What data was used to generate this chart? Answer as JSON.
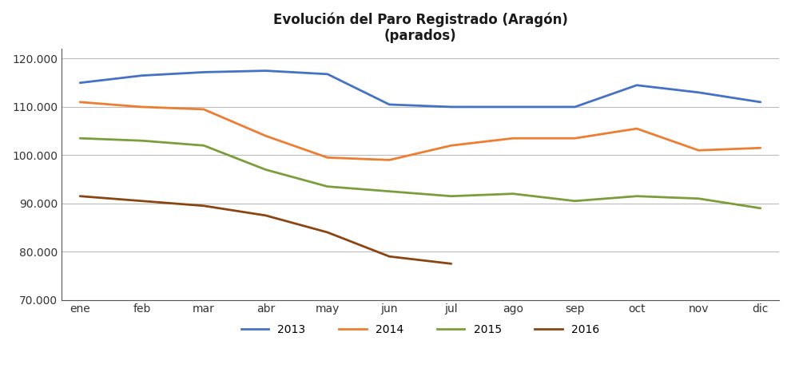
{
  "title_line1": "Evolución del Paro Registrado (Aragón)",
  "title_line2": "(parados)",
  "x_labels": [
    "ene",
    "feb",
    "mar",
    "abr",
    "may",
    "jun",
    "jul",
    "ago",
    "sep",
    "oct",
    "nov",
    "dic"
  ],
  "series": {
    "2013": {
      "values": [
        115000,
        116500,
        117200,
        117500,
        116800,
        110500,
        110000,
        110000,
        110000,
        114500,
        113000,
        111000
      ],
      "color": "#4472C4",
      "linewidth": 2.0
    },
    "2014": {
      "values": [
        111000,
        110000,
        109500,
        104000,
        99500,
        99000,
        102000,
        103500,
        103500,
        105500,
        101000,
        101500
      ],
      "color": "#ED7D31",
      "linewidth": 2.0
    },
    "2015": {
      "values": [
        103500,
        103000,
        102000,
        97000,
        93500,
        92500,
        91500,
        92000,
        90500,
        91500,
        91000,
        89000
      ],
      "color": "#7B9E3C",
      "linewidth": 2.0
    },
    "2016": {
      "values": [
        91500,
        90500,
        89500,
        87500,
        84000,
        79000,
        77500,
        null,
        null,
        null,
        null,
        null
      ],
      "color": "#8B4513",
      "linewidth": 2.0
    }
  },
  "ylim": [
    70000,
    122000
  ],
  "yticks": [
    70000,
    80000,
    90000,
    100000,
    110000,
    120000
  ],
  "ytick_labels": [
    "70.000",
    "80.000",
    "90.000",
    "100.000",
    "110.000",
    "120.000"
  ],
  "background_color": "#FFFFFF",
  "grid_color": "#BBBBBB",
  "tick_color": "#333333",
  "legend_order": [
    "2013",
    "2014",
    "2015",
    "2016"
  ],
  "legend_colors": [
    "#4472C4",
    "#ED7D31",
    "#7B9E3C",
    "#8B4513"
  ]
}
